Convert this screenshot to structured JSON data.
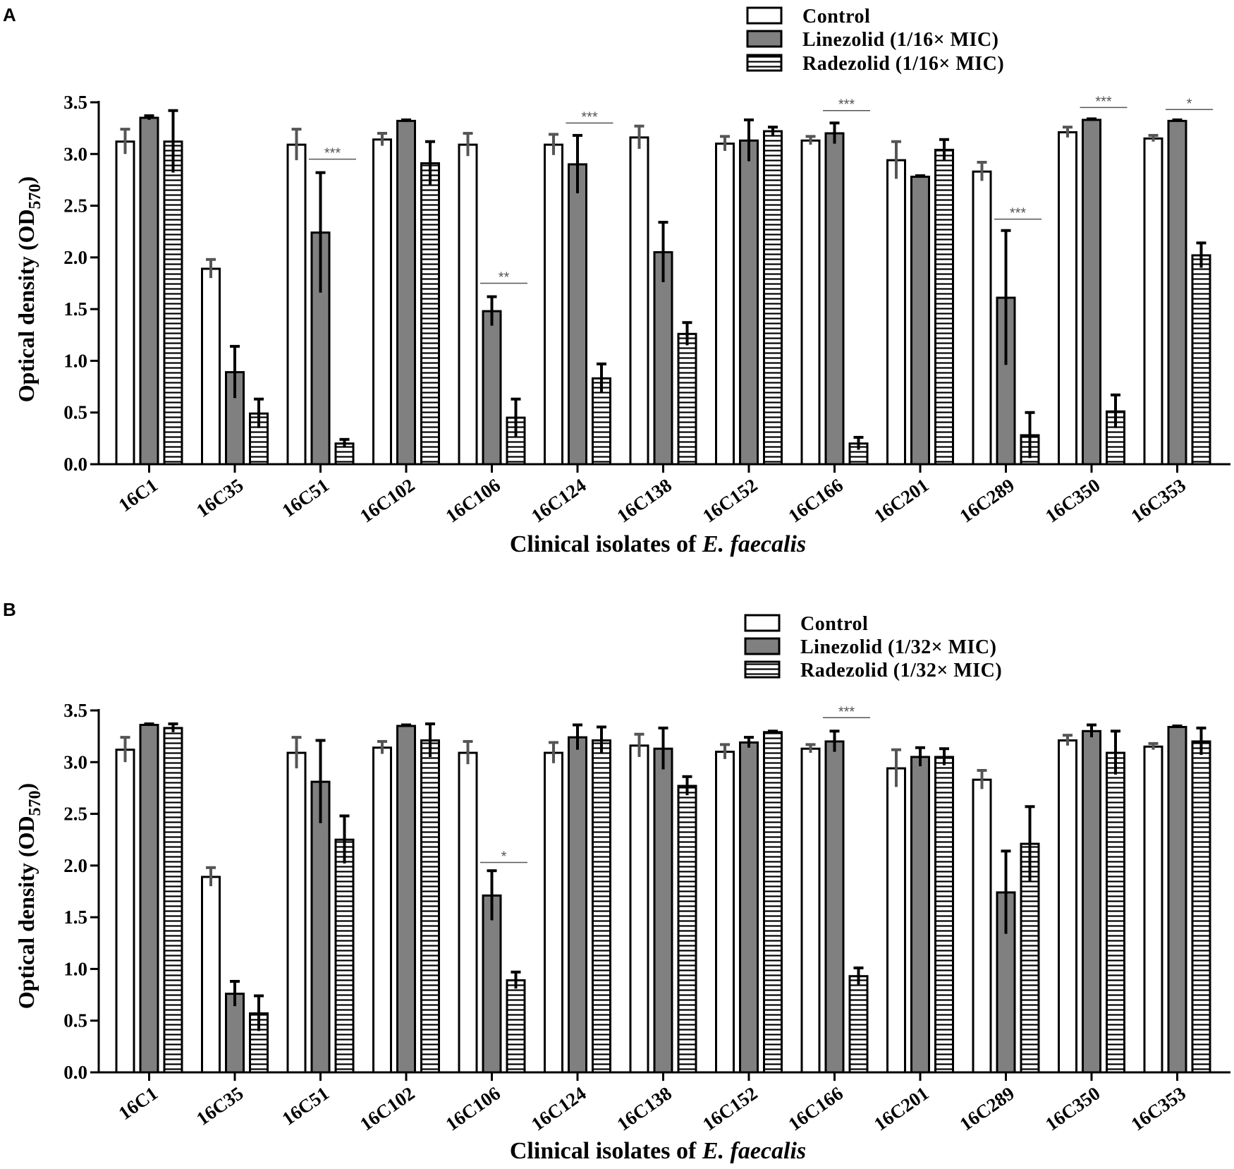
{
  "colors": {
    "control": "#ffffff",
    "linezolid": "#808080",
    "radezolid_bg": "#ffffff",
    "stroke": "#000000",
    "control_err": "#555555"
  },
  "chart_data": [
    {
      "type": "bar",
      "panel": "A",
      "categories": [
        "16C1",
        "16C35",
        "16C51",
        "16C102",
        "16C106",
        "16C124",
        "16C138",
        "16C152",
        "16C166",
        "16C201",
        "16C289",
        "16C350",
        "16C353"
      ],
      "series": [
        {
          "name": "Control",
          "pattern": "open",
          "values": [
            3.12,
            1.89,
            3.09,
            3.14,
            3.09,
            3.09,
            3.16,
            3.1,
            3.13,
            2.94,
            2.83,
            3.21,
            3.15
          ],
          "errors": [
            0.12,
            0.09,
            0.15,
            0.06,
            0.11,
            0.1,
            0.11,
            0.07,
            0.04,
            0.18,
            0.09,
            0.05,
            0.03
          ]
        },
        {
          "name": "Linezolid (1/16× MIC)",
          "pattern": "solid",
          "values": [
            3.35,
            0.89,
            2.24,
            3.32,
            1.48,
            2.9,
            2.05,
            3.13,
            3.2,
            2.78,
            1.61,
            3.33,
            3.32
          ],
          "errors": [
            0.02,
            0.25,
            0.58,
            0.01,
            0.14,
            0.28,
            0.29,
            0.2,
            0.1,
            0.01,
            0.65,
            0.01,
            0.01
          ]
        },
        {
          "name": "Radezolid (1/16× MIC)",
          "pattern": "striped",
          "values": [
            3.12,
            0.49,
            0.2,
            2.91,
            0.45,
            0.83,
            1.26,
            3.22,
            0.2,
            3.04,
            0.28,
            0.51,
            2.02
          ],
          "errors": [
            0.3,
            0.14,
            0.04,
            0.21,
            0.18,
            0.14,
            0.11,
            0.04,
            0.06,
            0.1,
            0.22,
            0.16,
            0.12
          ]
        }
      ],
      "significance": [
        {
          "category": "16C51",
          "label": "***",
          "value": 2.95
        },
        {
          "category": "16C106",
          "label": "**",
          "value": 1.75
        },
        {
          "category": "16C124",
          "label": "***",
          "value": 3.3
        },
        {
          "category": "16C166",
          "label": "***",
          "value": 3.42
        },
        {
          "category": "16C289",
          "label": "***",
          "value": 2.37
        },
        {
          "category": "16C350",
          "label": "***",
          "value": 3.45
        },
        {
          "category": "16C353",
          "label": "*",
          "value": 3.43
        }
      ],
      "ylim": [
        0,
        3.5
      ],
      "yticks": [
        "0.0",
        "0.5",
        "1.0",
        "1.5",
        "2.0",
        "2.5",
        "3.0",
        "3.5"
      ],
      "ylabel": "Optical density (OD",
      "ylabel_sub": "570",
      "ylabel_end": ")",
      "xlabel": "Clinical isolates of ",
      "xlabel_italic": "E. faecalis",
      "legend": [
        "Control",
        "Linezolid (1/16× MIC)",
        "Radezolid (1/16× MIC)"
      ],
      "legend_position": "top-right"
    },
    {
      "type": "bar",
      "panel": "B",
      "categories": [
        "16C1",
        "16C35",
        "16C51",
        "16C102",
        "16C106",
        "16C124",
        "16C138",
        "16C152",
        "16C166",
        "16C201",
        "16C289",
        "16C350",
        "16C353"
      ],
      "series": [
        {
          "name": "Control",
          "pattern": "open",
          "values": [
            3.12,
            1.89,
            3.09,
            3.14,
            3.09,
            3.09,
            3.16,
            3.1,
            3.13,
            2.94,
            2.83,
            3.21,
            3.15
          ],
          "errors": [
            0.12,
            0.09,
            0.15,
            0.06,
            0.11,
            0.1,
            0.11,
            0.07,
            0.04,
            0.18,
            0.09,
            0.05,
            0.03
          ]
        },
        {
          "name": "Linezolid (1/32× MIC)",
          "pattern": "solid",
          "values": [
            3.36,
            0.76,
            2.81,
            3.35,
            1.71,
            3.24,
            3.13,
            3.19,
            3.2,
            3.05,
            1.74,
            3.3,
            3.34
          ],
          "errors": [
            0.01,
            0.12,
            0.4,
            0.01,
            0.24,
            0.12,
            0.2,
            0.05,
            0.1,
            0.09,
            0.4,
            0.06,
            0.01
          ]
        },
        {
          "name": "Radezolid (1/32× MIC)",
          "pattern": "striped",
          "values": [
            3.33,
            0.57,
            2.25,
            3.21,
            0.89,
            3.21,
            2.77,
            3.29,
            0.93,
            3.05,
            2.21,
            3.09,
            3.2
          ],
          "errors": [
            0.04,
            0.17,
            0.23,
            0.16,
            0.08,
            0.13,
            0.09,
            0.01,
            0.08,
            0.08,
            0.36,
            0.21,
            0.13
          ]
        }
      ],
      "significance": [
        {
          "category": "16C106",
          "label": "*",
          "value": 2.03
        },
        {
          "category": "16C166",
          "label": "***",
          "value": 3.43
        }
      ],
      "ylim": [
        0,
        3.5
      ],
      "yticks": [
        "0.0",
        "0.5",
        "1.0",
        "1.5",
        "2.0",
        "2.5",
        "3.0",
        "3.5"
      ],
      "ylabel": "Optical density (OD",
      "ylabel_sub": "570",
      "ylabel_end": ")",
      "xlabel": "Clinical isolates of ",
      "xlabel_italic": "E. faecalis",
      "legend": [
        "Control",
        "Linezolid (1/32× MIC)",
        "Radezolid (1/32× MIC)"
      ],
      "legend_position": "top-right"
    }
  ]
}
